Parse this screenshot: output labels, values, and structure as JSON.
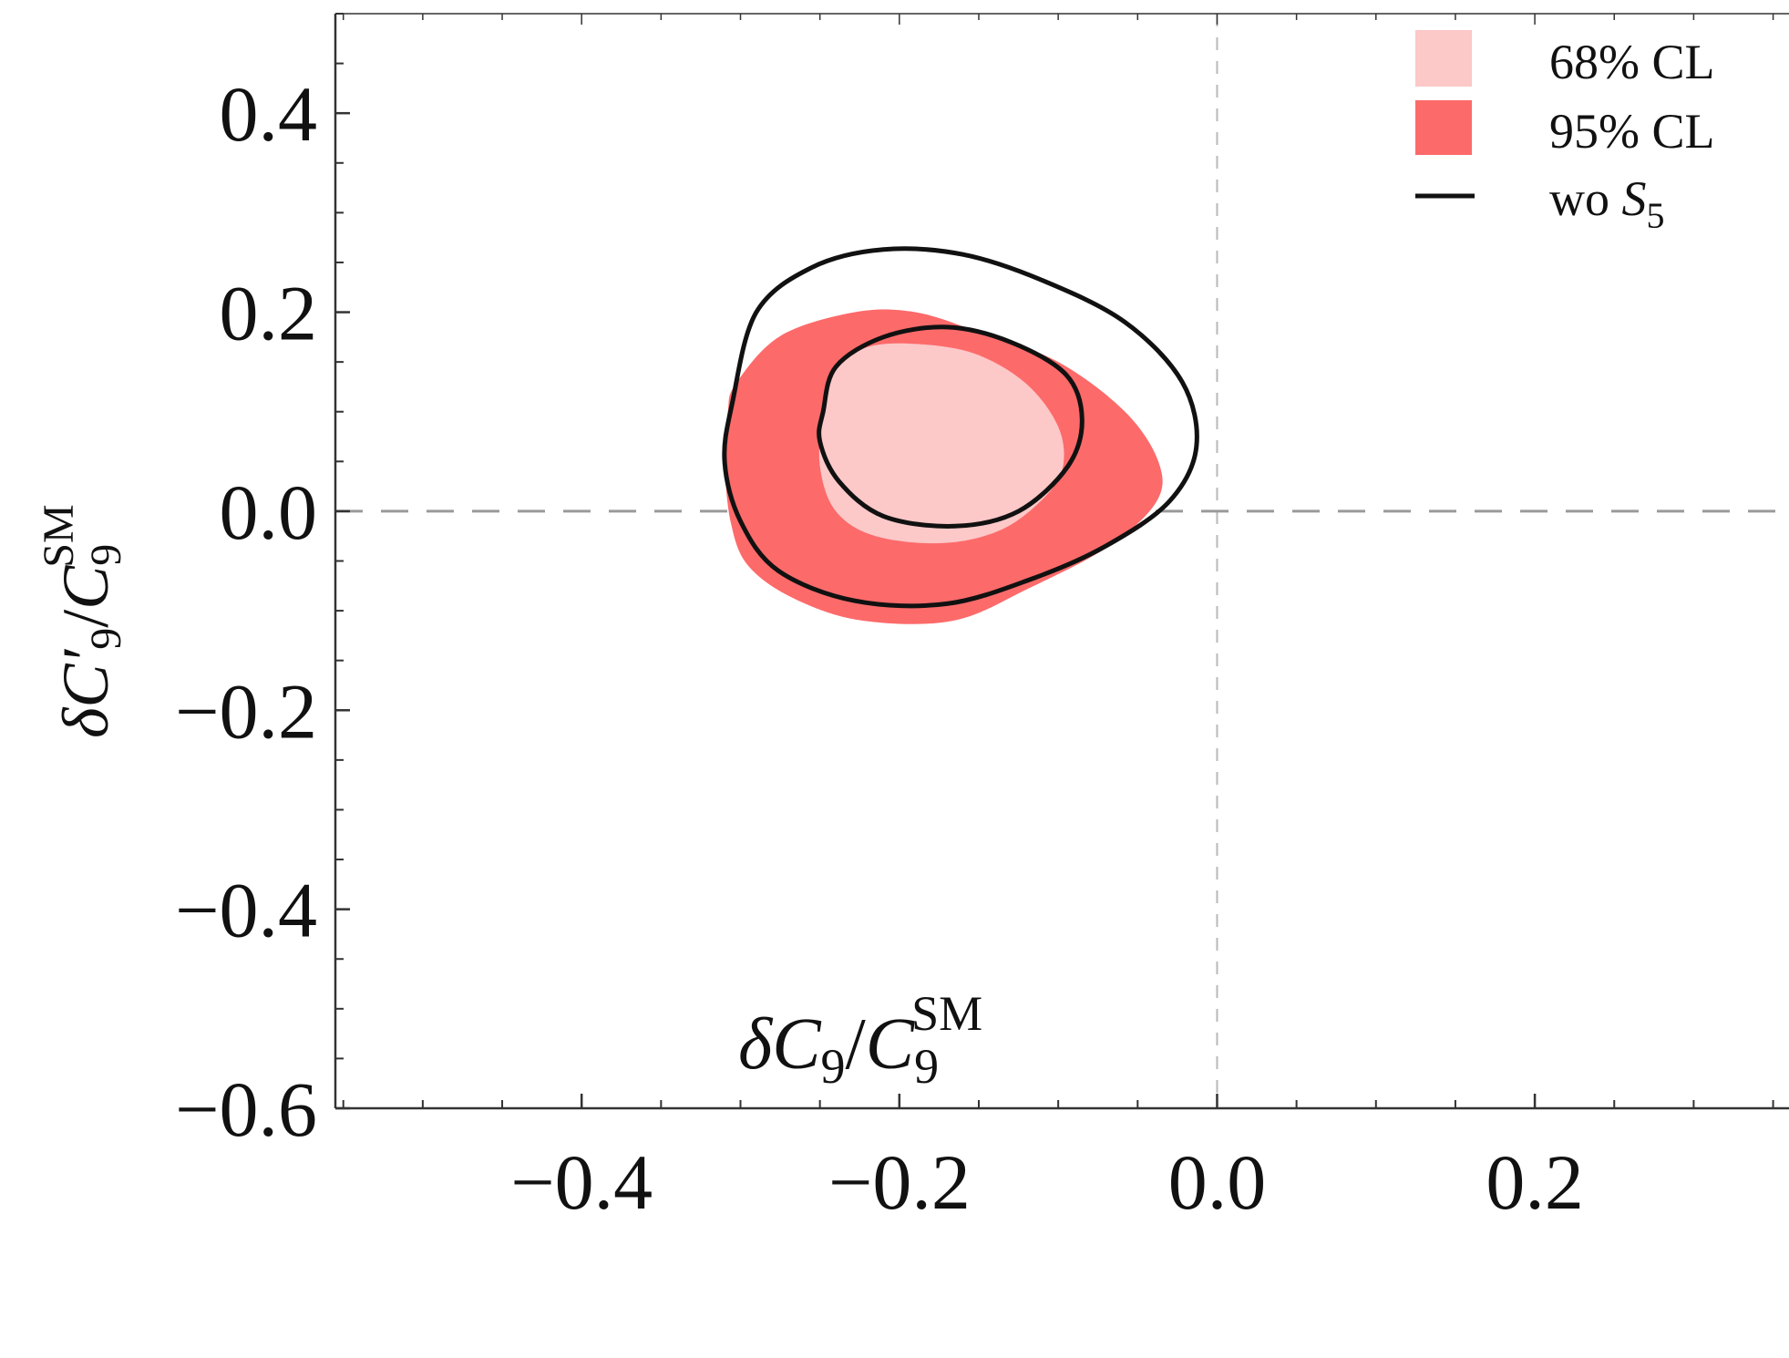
{
  "chart_data": {
    "type": "contour",
    "xlabel": {
      "prefix": "δ",
      "main": "C",
      "sub": "9",
      "sep": "/",
      "main2": "C",
      "sub2": "9",
      "sup2": "SM"
    },
    "ylabel": {
      "prefix": "δ",
      "main": "C′",
      "sub": "9",
      "sep": "/",
      "main2": "C",
      "sub2": "9",
      "sup2": "SM"
    },
    "xlim": [
      -0.555,
      0.36
    ],
    "ylim": [
      -0.6,
      0.5
    ],
    "x_ticks": [
      -0.4,
      -0.2,
      0.0,
      0.2
    ],
    "x_tick_labels": [
      "−0.4",
      "−0.2",
      "0.0",
      "0.2"
    ],
    "y_ticks": [
      0.4,
      0.2,
      0.0,
      -0.2,
      -0.4,
      -0.6
    ],
    "y_tick_labels": [
      "0.4",
      "0.2",
      "0.0",
      "−0.2",
      "−0.4",
      "−0.6"
    ],
    "reference_lines": {
      "x": 0.0,
      "y": 0.0,
      "style": "dashed",
      "color": "#aaaaaa"
    },
    "legend": {
      "position": "top-right",
      "entries": [
        {
          "label": "68% CL",
          "color": "#fcc8c8",
          "kind": "patch"
        },
        {
          "label": "95% CL",
          "color": "#fd6a6a",
          "kind": "patch"
        },
        {
          "label_main": "wo ",
          "label_sym": "S",
          "label_sub": "5",
          "color": "#111111",
          "kind": "line"
        }
      ]
    },
    "series": [
      {
        "name": "95% CL",
        "kind": "filled",
        "color": "#fd6a6a",
        "points": [
          [
            -0.303,
            0.128
          ],
          [
            -0.275,
            0.176
          ],
          [
            -0.228,
            0.2
          ],
          [
            -0.19,
            0.2
          ],
          [
            -0.15,
            0.18
          ],
          [
            -0.1,
            0.15
          ],
          [
            -0.058,
            0.1
          ],
          [
            -0.037,
            0.05
          ],
          [
            -0.038,
            0.01
          ],
          [
            -0.068,
            -0.035
          ],
          [
            -0.118,
            -0.077
          ],
          [
            -0.166,
            -0.11
          ],
          [
            -0.223,
            -0.11
          ],
          [
            -0.266,
            -0.088
          ],
          [
            -0.295,
            -0.055
          ],
          [
            -0.306,
            -0.012
          ],
          [
            -0.31,
            0.05
          ],
          [
            -0.308,
            0.1
          ]
        ]
      },
      {
        "name": "68% CL",
        "kind": "filled",
        "color": "#fcc8c8",
        "points": [
          [
            -0.248,
            0.095
          ],
          [
            -0.24,
            0.142
          ],
          [
            -0.22,
            0.165
          ],
          [
            -0.188,
            0.168
          ],
          [
            -0.152,
            0.158
          ],
          [
            -0.12,
            0.128
          ],
          [
            -0.1,
            0.085
          ],
          [
            -0.097,
            0.045
          ],
          [
            -0.108,
            0.015
          ],
          [
            -0.135,
            -0.018
          ],
          [
            -0.172,
            -0.032
          ],
          [
            -0.215,
            -0.025
          ],
          [
            -0.24,
            0.0
          ],
          [
            -0.25,
            0.045
          ]
        ]
      },
      {
        "name": "wo S5 outer",
        "kind": "line",
        "color": "#111111",
        "points": [
          [
            -0.305,
            0.11
          ],
          [
            -0.29,
            0.2
          ],
          [
            -0.255,
            0.245
          ],
          [
            -0.21,
            0.263
          ],
          [
            -0.16,
            0.258
          ],
          [
            -0.11,
            0.232
          ],
          [
            -0.058,
            0.19
          ],
          [
            -0.022,
            0.13
          ],
          [
            -0.013,
            0.065
          ],
          [
            -0.03,
            0.01
          ],
          [
            -0.07,
            -0.035
          ],
          [
            -0.115,
            -0.067
          ],
          [
            -0.17,
            -0.093
          ],
          [
            -0.228,
            -0.09
          ],
          [
            -0.276,
            -0.06
          ],
          [
            -0.3,
            -0.01
          ],
          [
            -0.31,
            0.05
          ]
        ]
      },
      {
        "name": "wo S5 inner",
        "kind": "line",
        "color": "#111111",
        "points": [
          [
            -0.248,
            0.1
          ],
          [
            -0.24,
            0.145
          ],
          [
            -0.21,
            0.175
          ],
          [
            -0.17,
            0.185
          ],
          [
            -0.13,
            0.17
          ],
          [
            -0.095,
            0.137
          ],
          [
            -0.085,
            0.092
          ],
          [
            -0.094,
            0.045
          ],
          [
            -0.125,
            0.0
          ],
          [
            -0.165,
            -0.015
          ],
          [
            -0.21,
            -0.005
          ],
          [
            -0.238,
            0.03
          ],
          [
            -0.25,
            0.07
          ]
        ]
      }
    ]
  }
}
